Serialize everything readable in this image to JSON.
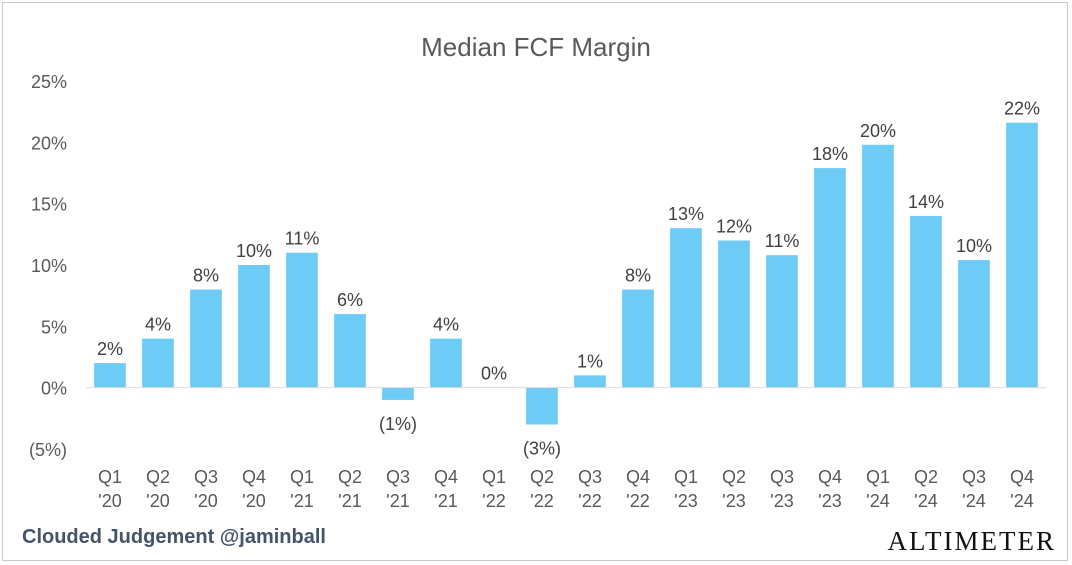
{
  "chart_data": {
    "type": "bar",
    "title": "Median FCF Margin",
    "xlabel": "",
    "ylabel": "",
    "ylim": [
      -5,
      25
    ],
    "yticks": [
      25,
      20,
      15,
      10,
      5,
      0,
      -5
    ],
    "ytick_labels": [
      "25%",
      "20%",
      "15%",
      "10%",
      "5%",
      "0%",
      "(5%)"
    ],
    "categories": [
      [
        "Q1",
        "'20"
      ],
      [
        "Q2",
        "'20"
      ],
      [
        "Q3",
        "'20"
      ],
      [
        "Q4",
        "'20"
      ],
      [
        "Q1",
        "'21"
      ],
      [
        "Q2",
        "'21"
      ],
      [
        "Q3",
        "'21"
      ],
      [
        "Q4",
        "'21"
      ],
      [
        "Q1",
        "'22"
      ],
      [
        "Q2",
        "'22"
      ],
      [
        "Q3",
        "'22"
      ],
      [
        "Q4",
        "'22"
      ],
      [
        "Q1",
        "'23"
      ],
      [
        "Q2",
        "'23"
      ],
      [
        "Q3",
        "'23"
      ],
      [
        "Q4",
        "'23"
      ],
      [
        "Q1",
        "'24"
      ],
      [
        "Q2",
        "'24"
      ],
      [
        "Q3",
        "'24"
      ],
      [
        "Q4",
        "'24"
      ]
    ],
    "values": [
      2,
      4,
      8,
      10,
      11,
      6,
      -1,
      4,
      0,
      -3,
      1,
      8,
      13,
      12,
      10.8,
      17.9,
      19.8,
      14,
      10.4,
      21.6
    ],
    "data_labels": [
      "2%",
      "4%",
      "8%",
      "10%",
      "11%",
      "6%",
      "(1%)",
      "4%",
      "0%",
      "(3%)",
      "1%",
      "8%",
      "13%",
      "12%",
      "11%",
      "18%",
      "20%",
      "14%",
      "10%",
      "22%"
    ],
    "bar_color": "#6ecbf5",
    "grid": false
  },
  "footer": {
    "left": "Clouded Judgement @jaminball",
    "right": "ALTIMETER"
  }
}
